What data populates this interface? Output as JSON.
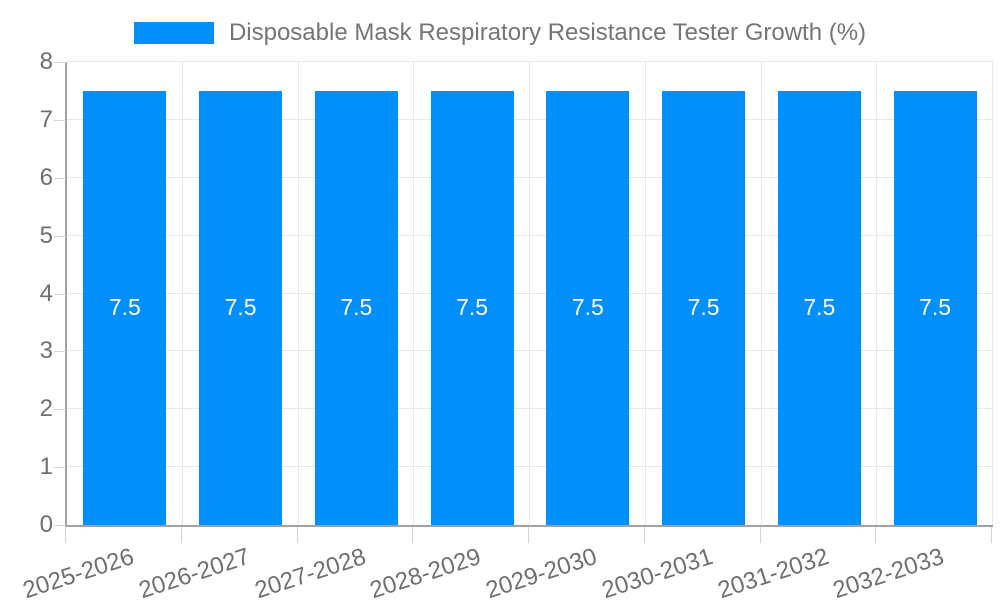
{
  "chart_data": {
    "type": "bar",
    "title": "Disposable Mask Respiratory Resistance Tester Growth (%)",
    "legend_position": "top",
    "categories": [
      "2025-2026",
      "2026-2027",
      "2027-2028",
      "2028-2029",
      "2029-2030",
      "2030-2031",
      "2031-2032",
      "2032-2033"
    ],
    "series": [
      {
        "name": "Disposable Mask Respiratory Resistance Tester Growth (%)",
        "color": "#008ffb",
        "values": [
          7.5,
          7.5,
          7.5,
          7.5,
          7.5,
          7.5,
          7.5,
          7.5
        ],
        "value_labels": [
          "7.5",
          "7.5",
          "7.5",
          "7.5",
          "7.5",
          "7.5",
          "7.5",
          "7.5"
        ]
      }
    ],
    "xlabel": "",
    "ylabel": "",
    "ylim": [
      0,
      8
    ],
    "yticks": [
      0,
      1,
      2,
      3,
      4,
      5,
      6,
      7,
      8
    ],
    "grid": true,
    "colors": {
      "bar": "#008ffb",
      "grid": "#e7e7e7",
      "axis": "#a1a1a1",
      "tick_text": "#6f6f6f",
      "title_text": "#757575",
      "value_label_text": "#ffffff"
    }
  }
}
